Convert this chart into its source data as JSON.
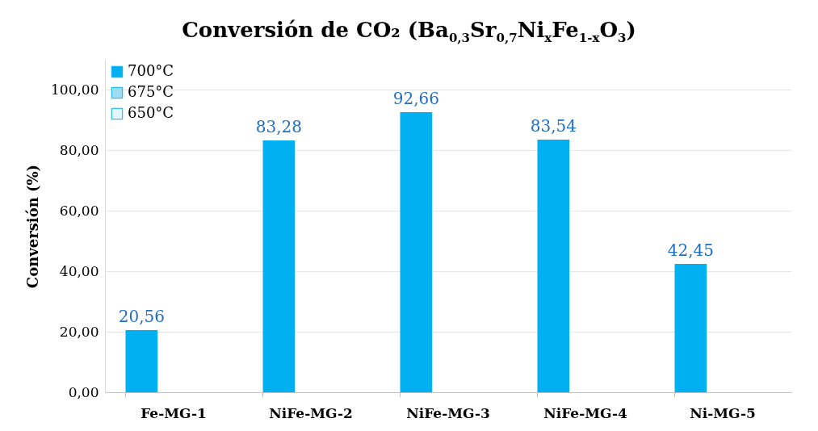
{
  "chart_data": {
    "type": "bar",
    "title": "Conversión de CO₂ (Ba$_{0,3}$Sr$_{0,7}$Ni$_{x}$Fe$_{1-x}$O$_{3}$)",
    "ylabel": "Conversión (%)",
    "categories": [
      "Fe-MG-1",
      "NiFe-MG-2",
      "NiFe-MG-3",
      "NiFe-MG-4",
      "Ni-MG-5"
    ],
    "series": [
      {
        "name": "700°C",
        "color": "#00b0f0",
        "values": [
          20.56,
          83.28,
          92.66,
          83.54,
          42.45
        ],
        "value_labels": [
          "20,56",
          "83,28",
          "92,66",
          "83,54",
          "42,45"
        ]
      },
      {
        "name": "675°C",
        "color": "#9fdcf4",
        "values": [
          null,
          null,
          null,
          null,
          null
        ]
      },
      {
        "name": "650°C",
        "color": "#e3f6fd",
        "values": [
          null,
          null,
          null,
          null,
          null
        ]
      }
    ],
    "ylim": [
      0,
      110
    ],
    "yticks": [
      {
        "value": 0,
        "label": "0,00"
      },
      {
        "value": 20,
        "label": "20,00"
      },
      {
        "value": 40,
        "label": "40,00"
      },
      {
        "value": 60,
        "label": "60,00"
      },
      {
        "value": 80,
        "label": "80,00"
      },
      {
        "value": 100,
        "label": "100,00"
      }
    ],
    "grid": "y",
    "legend": "top left"
  }
}
